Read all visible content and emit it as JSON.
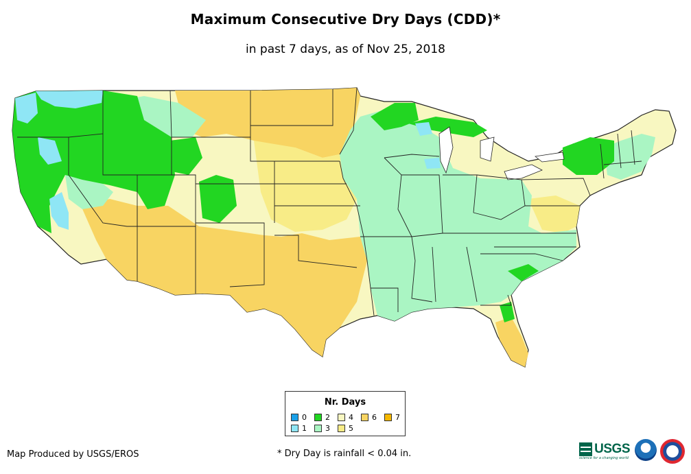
{
  "title": "Maximum Consecutive Dry Days (CDD)*",
  "subtitle": "in past 7 days, as of Nov 25, 2018",
  "legend": {
    "title": "Nr. Days",
    "items": [
      {
        "label": "0",
        "color": "#1aa0e8"
      },
      {
        "label": "1",
        "color": "#8fe6f5"
      },
      {
        "label": "2",
        "color": "#22d622"
      },
      {
        "label": "3",
        "color": "#aaf5c3"
      },
      {
        "label": "4",
        "color": "#f8f7c1"
      },
      {
        "label": "5",
        "color": "#f8ec87"
      },
      {
        "label": "6",
        "color": "#f8d462"
      },
      {
        "label": "7",
        "color": "#f5b800"
      }
    ]
  },
  "footer": {
    "credit": "Map Produced by USGS/EROS",
    "footnote": "* Dry Day is rainfall < 0.04 in."
  },
  "logos": {
    "usgs": "USGS",
    "usgs_tagline": "science for a changing world",
    "noaa": "noaa",
    "nws": "national weather service"
  }
}
